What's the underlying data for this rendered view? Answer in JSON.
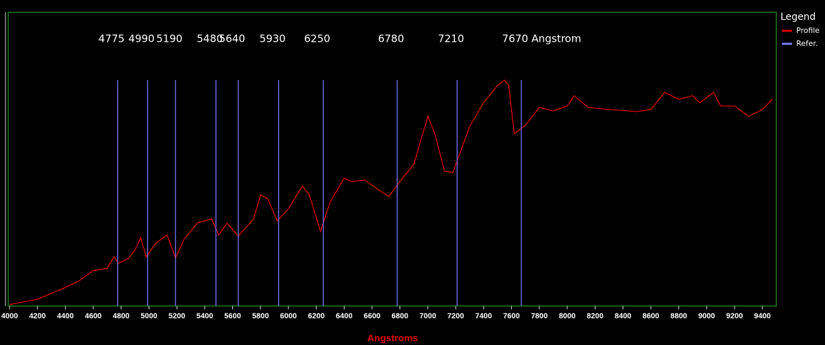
{
  "chart_data": {
    "type": "line",
    "x_label": "Angstroms",
    "legend_title": "Legend",
    "legend": "right",
    "xlim": [
      4000,
      9500
    ],
    "ylim": [
      0,
      100
    ],
    "xticks": [
      4000,
      4200,
      4400,
      4600,
      4800,
      5000,
      5200,
      5400,
      5600,
      5800,
      6000,
      6200,
      6400,
      6600,
      6800,
      7000,
      7200,
      7400,
      7600,
      7800,
      8000,
      8200,
      8400,
      8600,
      8800,
      9000,
      9200,
      9400
    ],
    "series": [
      {
        "name": "Profile",
        "color": "#e00000",
        "x": [
          4000,
          4200,
          4400,
          4500,
          4600,
          4700,
          4750,
          4780,
          4850,
          4900,
          4940,
          4980,
          5050,
          5130,
          5190,
          5250,
          5350,
          5450,
          5500,
          5560,
          5640,
          5750,
          5800,
          5850,
          5920,
          6000,
          6100,
          6150,
          6230,
          6300,
          6400,
          6450,
          6550,
          6650,
          6720,
          6800,
          6900,
          7000,
          7050,
          7120,
          7180,
          7300,
          7400,
          7500,
          7550,
          7580,
          7620,
          7700,
          7800,
          7900,
          8000,
          8050,
          8150,
          8300,
          8500,
          8600,
          8700,
          8800,
          8900,
          8950,
          9050,
          9100,
          9200,
          9300,
          9400,
          9470
        ],
        "values": [
          0.5,
          2.3,
          6.3,
          8.6,
          12.1,
          12.8,
          16.8,
          14.5,
          16.1,
          19.1,
          23.3,
          16.8,
          21.4,
          24.2,
          16.3,
          22.6,
          28.4,
          29.6,
          24.2,
          28.2,
          23.8,
          29.6,
          37.8,
          36.6,
          28.9,
          33.1,
          40.8,
          37.8,
          25.4,
          35.4,
          43.6,
          42.4,
          42.9,
          39.4,
          37.3,
          42.4,
          48.3,
          64.6,
          58.7,
          45.9,
          45.5,
          61.1,
          69.2,
          75.1,
          76.9,
          75.1,
          58.7,
          61.5,
          67.6,
          66.4,
          68.1,
          71.6,
          67.6,
          66.9,
          66.2,
          66.9,
          72.7,
          70.4,
          71.6,
          69.2,
          72.7,
          68.1,
          68.1,
          64.6,
          66.9,
          70.4
        ]
      },
      {
        "name": "Refer.",
        "color": "#7a7aff",
        "x": [
          4775,
          4990,
          5190,
          5480,
          5640,
          5930,
          6250,
          6780,
          7210,
          7670
        ],
        "value_labels": [
          "4775",
          "4990",
          "5190",
          "5480",
          "5640",
          "5930",
          "6250",
          "6780",
          "7210",
          "7670 Angstrom"
        ]
      }
    ]
  }
}
